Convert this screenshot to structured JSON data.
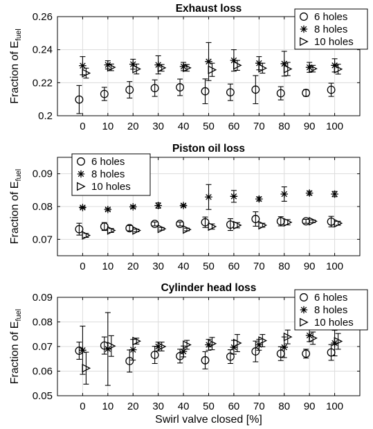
{
  "figure": {
    "xlabel": "Swirl valve closed [%]"
  },
  "chart_data": [
    {
      "type": "scatter",
      "title": "Exhaust loss",
      "ylabel": {
        "main": "Fraction of E",
        "sub": "fuel"
      },
      "x": [
        0,
        10,
        20,
        30,
        40,
        50,
        60,
        70,
        80,
        90,
        100
      ],
      "xlim": [
        -10,
        110
      ],
      "ylim": [
        0.2,
        0.26
      ],
      "yticks": [
        0.2,
        0.22,
        0.24,
        0.26
      ],
      "ytick_labels": [
        "0.2",
        "0.22",
        "0.24",
        "0.26"
      ],
      "xtick_labels": [
        "0",
        "10",
        "20",
        "30",
        "40",
        "50",
        "60",
        "70",
        "80",
        "90",
        "100"
      ],
      "legend_position": "top-right",
      "series": [
        {
          "name": "6 holes",
          "marker": "circle",
          "values": [
            0.2098,
            0.2132,
            0.2157,
            0.2167,
            0.2172,
            0.2148,
            0.2142,
            0.2158,
            0.2136,
            0.2138,
            0.2157
          ],
          "errors": [
            0.0085,
            0.004,
            0.005,
            0.005,
            0.005,
            0.0075,
            0.005,
            0.0085,
            0.004,
            0.002,
            0.004
          ]
        },
        {
          "name": "8 holes",
          "marker": "star",
          "values": [
            0.2303,
            0.2308,
            0.2312,
            0.2308,
            0.2298,
            0.2328,
            0.2335,
            0.2318,
            0.2315,
            0.2293,
            0.2305
          ],
          "errors": [
            0.0055,
            0.0025,
            0.003,
            0.0055,
            0.0025,
            0.0115,
            0.0065,
            0.004,
            0.0075,
            0.003,
            0.004
          ]
        },
        {
          "name": "10 holes",
          "marker": "triangle-right",
          "values": [
            0.2258,
            0.2293,
            0.2283,
            0.229,
            0.229,
            0.2278,
            0.2305,
            0.2288,
            0.2283,
            0.2285,
            0.2282
          ],
          "errors": [
            0.003,
            0.002,
            0.003,
            0.002,
            0.002,
            0.004,
            0.003,
            0.003,
            0.004,
            0.002,
            0.003
          ]
        }
      ]
    },
    {
      "type": "scatter",
      "title": "Piston oil loss",
      "ylabel": {
        "main": "Fraction of E",
        "sub": "fuel"
      },
      "x": [
        0,
        10,
        20,
        30,
        40,
        50,
        60,
        70,
        80,
        90,
        100
      ],
      "xlim": [
        -10,
        110
      ],
      "ylim": [
        0.065,
        0.095
      ],
      "yticks": [
        0.07,
        0.08,
        0.09
      ],
      "ytick_labels": [
        "0.07",
        "0.08",
        "0.09"
      ],
      "xtick_labels": [
        "0",
        "10",
        "20",
        "30",
        "40",
        "50",
        "60",
        "70",
        "80",
        "90",
        "100"
      ],
      "legend_position": "top-left",
      "series": [
        {
          "name": "6 holes",
          "marker": "circle",
          "values": [
            0.0731,
            0.0739,
            0.0734,
            0.0747,
            0.0747,
            0.0752,
            0.0745,
            0.0762,
            0.0755,
            0.0755,
            0.0754
          ],
          "errors": [
            0.0018,
            0.0012,
            0.0008,
            0.0006,
            0.0006,
            0.0016,
            0.0018,
            0.0022,
            0.0014,
            0.0006,
            0.0016
          ]
        },
        {
          "name": "8 holes",
          "marker": "star",
          "values": [
            0.0797,
            0.0791,
            0.0799,
            0.0803,
            0.0803,
            0.0829,
            0.0831,
            0.0823,
            0.0838,
            0.0841,
            0.0838
          ],
          "errors": [
            0.0003,
            0.0004,
            0.0004,
            0.0008,
            0.0004,
            0.0038,
            0.0018,
            0.0006,
            0.0022,
            0.0006,
            0.0008
          ]
        },
        {
          "name": "10 holes",
          "marker": "triangle-right",
          "values": [
            0.0712,
            0.0727,
            0.0727,
            0.0732,
            0.073,
            0.0739,
            0.0743,
            0.0743,
            0.0752,
            0.0755,
            0.0749
          ],
          "errors": [
            0.0006,
            0.0006,
            0.0004,
            0.0004,
            0.0004,
            0.0008,
            0.0008,
            0.0006,
            0.0008,
            0.0004,
            0.0006
          ]
        }
      ]
    },
    {
      "type": "scatter",
      "title": "Cylinder head loss",
      "ylabel": {
        "main": "Fraction of E",
        "sub": "fuel"
      },
      "x": [
        0,
        10,
        20,
        30,
        40,
        50,
        60,
        70,
        80,
        90,
        100
      ],
      "xlim": [
        -10,
        110
      ],
      "ylim": [
        0.05,
        0.09
      ],
      "yticks": [
        0.05,
        0.06,
        0.07,
        0.08,
        0.09
      ],
      "ytick_labels": [
        "0.05",
        "0.06",
        "0.07",
        "0.08",
        "0.09"
      ],
      "xtick_labels": [
        "0",
        "10",
        "20",
        "30",
        "40",
        "50",
        "60",
        "70",
        "80",
        "90",
        "100"
      ],
      "legend_position": "top-right",
      "series": [
        {
          "name": "6 holes",
          "marker": "circle",
          "values": [
            0.0683,
            0.0704,
            0.0641,
            0.0666,
            0.0661,
            0.0644,
            0.0659,
            0.068,
            0.0671,
            0.0671,
            0.0676
          ],
          "errors": [
            0.0035,
            0.0035,
            0.0045,
            0.0035,
            0.0028,
            0.0035,
            0.0028,
            0.0042,
            0.0028,
            0.0018,
            0.0032
          ]
        },
        {
          "name": "8 holes",
          "marker": "star",
          "values": [
            0.0685,
            0.069,
            0.0687,
            0.07,
            0.068,
            0.0707,
            0.0697,
            0.0707,
            0.0697,
            0.0745,
            0.0714
          ],
          "errors": [
            0.0098,
            0.0148,
            0.0042,
            0.0018,
            0.0022,
            0.0022,
            0.0028,
            0.0022,
            0.0042,
            0.0025,
            0.0052
          ]
        },
        {
          "name": "10 holes",
          "marker": "triangle-right",
          "values": [
            0.0612,
            0.0702,
            0.0722,
            0.07,
            0.0707,
            0.0712,
            0.0714,
            0.0724,
            0.0739,
            0.0734,
            0.0721
          ],
          "errors": [
            0.0065,
            0.0042,
            0.0012,
            0.0018,
            0.0018,
            0.0025,
            0.0035,
            0.0025,
            0.0028,
            0.0025,
            0.0032
          ]
        }
      ]
    }
  ]
}
